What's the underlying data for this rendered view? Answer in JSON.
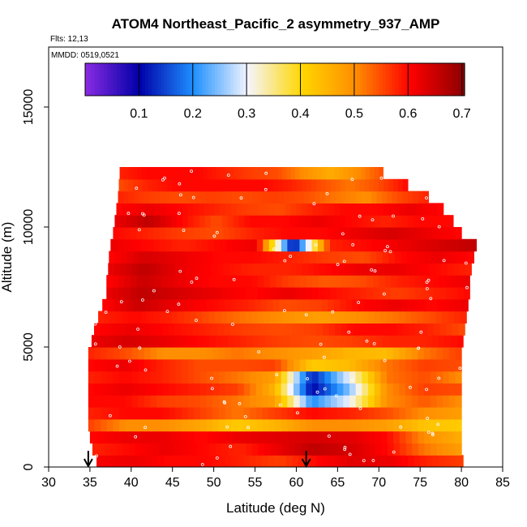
{
  "chart_data": {
    "type": "heatmap",
    "title": "ATOM4 Northeast_Pacific_2 asymmetry_937_AMP",
    "flights_label": "Flts: 12,13",
    "mmdd_label": "MMDD: 0519,0521",
    "xlabel": "Latitude (deg N)",
    "ylabel": "Altitude (m)",
    "xlim": [
      30,
      85
    ],
    "ylim": [
      0,
      17500
    ],
    "x_ticks": [
      "30",
      "35",
      "40",
      "45",
      "50",
      "55",
      "60",
      "65",
      "70",
      "75",
      "80",
      "85"
    ],
    "y_ticks": [
      "0",
      "5000",
      "10000",
      "15000"
    ],
    "colorbar": {
      "range": [
        0,
        0.705
      ],
      "tick_labels": [
        "0.1",
        "0.2",
        "0.3",
        "0.4",
        "0.5",
        "0.6",
        "0.7"
      ],
      "tick_values": [
        0.1,
        0.2,
        0.3,
        0.4,
        0.5,
        0.6,
        0.7
      ],
      "colors": [
        "#8a2be2",
        "#0000a8",
        "#1e90ff",
        "#f5f5ff",
        "#ffd700",
        "#ff8c00",
        "#ff0000",
        "#8b0000"
      ]
    },
    "arrows_lat": [
      34.8,
      61.2
    ],
    "grid": false,
    "legend": "none",
    "layers": [
      {
        "alt": 250,
        "lat_min": 35.8,
        "lat_max": 80.2,
        "values": [
          0.61,
          0.62,
          0.6,
          0.6,
          0.58,
          0.56,
          0.6,
          0.63,
          0.62,
          0.58,
          0.56
        ]
      },
      {
        "alt": 750,
        "lat_min": 35.3,
        "lat_max": 80.0,
        "values": [
          0.58,
          0.6,
          0.62,
          0.6,
          0.58,
          0.62,
          0.66,
          0.64,
          0.6,
          0.52,
          0.48
        ]
      },
      {
        "alt": 1250,
        "lat_min": 35.0,
        "lat_max": 80.0,
        "values": [
          0.6,
          0.62,
          0.62,
          0.6,
          0.62,
          0.63,
          0.64,
          0.63,
          0.6,
          0.5,
          0.46
        ]
      },
      {
        "alt": 1750,
        "lat_min": 34.8,
        "lat_max": 80.0,
        "values": [
          0.56,
          0.5,
          0.5,
          0.47,
          0.42,
          0.45,
          0.5,
          0.5,
          0.48,
          0.43,
          0.42
        ]
      },
      {
        "alt": 2250,
        "lat_min": 34.8,
        "lat_max": 80.0,
        "values": [
          0.58,
          0.6,
          0.6,
          0.56,
          0.52,
          0.56,
          0.6,
          0.58,
          0.55,
          0.5,
          0.48
        ]
      },
      {
        "alt": 2750,
        "lat_min": 34.8,
        "lat_max": 80.0,
        "values": [
          0.6,
          0.6,
          0.56,
          0.55,
          0.52,
          0.48,
          0.2,
          0.3,
          0.5,
          0.54,
          0.5
        ]
      },
      {
        "alt": 3250,
        "lat_min": 34.8,
        "lat_max": 80.0,
        "values": [
          0.6,
          0.62,
          0.6,
          0.58,
          0.56,
          0.45,
          0.1,
          0.25,
          0.5,
          0.56,
          0.55
        ]
      },
      {
        "alt": 3750,
        "lat_min": 34.8,
        "lat_max": 80.0,
        "values": [
          0.58,
          0.6,
          0.58,
          0.55,
          0.52,
          0.48,
          0.12,
          0.3,
          0.52,
          0.55,
          0.5
        ]
      },
      {
        "alt": 4250,
        "lat_min": 34.8,
        "lat_max": 80.0,
        "values": [
          0.6,
          0.62,
          0.58,
          0.55,
          0.55,
          0.56,
          0.42,
          0.44,
          0.52,
          0.56,
          0.55
        ]
      },
      {
        "alt": 4750,
        "lat_min": 34.8,
        "lat_max": 80.0,
        "values": [
          0.58,
          0.55,
          0.5,
          0.5,
          0.52,
          0.5,
          0.48,
          0.45,
          0.44,
          0.52,
          0.56
        ]
      },
      {
        "alt": 5250,
        "lat_min": 35.2,
        "lat_max": 80.2,
        "values": [
          0.62,
          0.64,
          0.62,
          0.6,
          0.58,
          0.56,
          0.55,
          0.56,
          0.58,
          0.58,
          0.6
        ]
      },
      {
        "alt": 5750,
        "lat_min": 35.5,
        "lat_max": 80.4,
        "values": [
          0.6,
          0.62,
          0.6,
          0.58,
          0.56,
          0.55,
          0.56,
          0.6,
          0.6,
          0.58,
          0.55
        ]
      },
      {
        "alt": 6250,
        "lat_min": 36.0,
        "lat_max": 80.6,
        "values": [
          0.58,
          0.6,
          0.58,
          0.55,
          0.52,
          0.5,
          0.48,
          0.5,
          0.52,
          0.55,
          0.58
        ]
      },
      {
        "alt": 6750,
        "lat_min": 36.5,
        "lat_max": 80.8,
        "values": [
          0.6,
          0.65,
          0.62,
          0.6,
          0.58,
          0.55,
          0.56,
          0.6,
          0.62,
          0.6,
          0.62
        ]
      },
      {
        "alt": 7250,
        "lat_min": 37.0,
        "lat_max": 81.0,
        "values": [
          0.62,
          0.66,
          0.64,
          0.62,
          0.6,
          0.62,
          0.6,
          0.58,
          0.56,
          0.58,
          0.6
        ]
      },
      {
        "alt": 7750,
        "lat_min": 37.0,
        "lat_max": 81.0,
        "values": [
          0.6,
          0.65,
          0.62,
          0.6,
          0.6,
          0.56,
          0.54,
          0.55,
          0.58,
          0.6,
          0.62
        ]
      },
      {
        "alt": 8250,
        "lat_min": 37.2,
        "lat_max": 81.2,
        "values": [
          0.62,
          0.66,
          0.62,
          0.6,
          0.58,
          0.58,
          0.6,
          0.62,
          0.62,
          0.6,
          0.58
        ]
      },
      {
        "alt": 8750,
        "lat_min": 37.3,
        "lat_max": 81.5,
        "values": [
          0.6,
          0.64,
          0.62,
          0.6,
          0.6,
          0.58,
          0.56,
          0.55,
          0.6,
          0.62,
          0.6
        ]
      },
      {
        "alt": 9250,
        "lat_min": 37.5,
        "lat_max": 81.8,
        "values": [
          0.62,
          0.6,
          0.58,
          0.6,
          0.62,
          0.1,
          0.58,
          0.6,
          0.62,
          0.64,
          0.66
        ]
      },
      {
        "alt": 9750,
        "lat_min": 37.8,
        "lat_max": 80.0,
        "values": [
          0.6,
          0.58,
          0.56,
          0.55,
          0.58,
          0.6,
          0.6,
          0.62,
          0.64,
          0.62,
          0.6
        ]
      },
      {
        "alt": 10250,
        "lat_min": 38.0,
        "lat_max": 79.0,
        "values": [
          0.62,
          0.66,
          0.6,
          0.55,
          0.6,
          0.6,
          0.62,
          0.6,
          0.58,
          0.6,
          0.6
        ]
      },
      {
        "alt": 10750,
        "lat_min": 38.2,
        "lat_max": 77.8,
        "values": [
          0.6,
          0.62,
          0.6,
          0.58,
          0.56,
          0.55,
          0.58,
          0.6,
          0.6,
          0.62,
          0.6
        ]
      },
      {
        "alt": 11250,
        "lat_min": 38.4,
        "lat_max": 76.0,
        "values": [
          0.58,
          0.56,
          0.55,
          0.56,
          0.55,
          0.56,
          0.55,
          0.52,
          0.5,
          0.55,
          0.58
        ]
      },
      {
        "alt": 11750,
        "lat_min": 38.5,
        "lat_max": 73.5,
        "values": [
          0.55,
          0.58,
          0.6,
          0.6,
          0.6,
          0.6,
          0.58,
          0.55,
          0.52,
          0.55,
          0.6
        ]
      },
      {
        "alt": 12250,
        "lat_min": 38.6,
        "lat_max": 70.5,
        "values": [
          0.58,
          0.6,
          0.6,
          0.6,
          0.58,
          0.56,
          0.55,
          0.5,
          0.46,
          0.5,
          0.55
        ]
      }
    ]
  }
}
